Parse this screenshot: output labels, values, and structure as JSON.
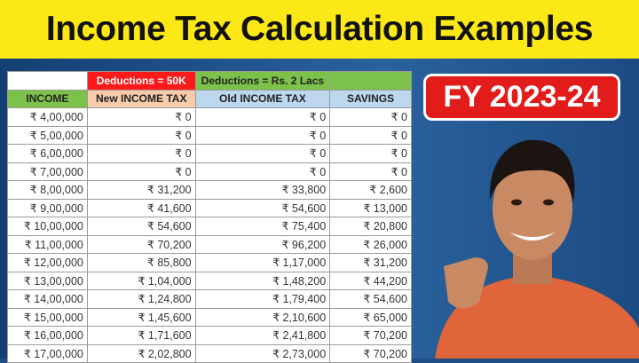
{
  "title": "Income Tax Calculation Examples",
  "badge": "FY 2023-24",
  "table": {
    "group_headers": [
      "",
      "Deductions = 50K",
      "Deductions = Rs. 2 Lacs",
      ""
    ],
    "group_colors": [
      "#ffffff",
      "#ff1a1a",
      "#7cc24a",
      "#7cc24a"
    ],
    "headers": [
      "INCOME",
      "New INCOME TAX",
      "Old INCOME TAX",
      "SAVINGS"
    ],
    "header_colors": [
      "#7cc24a",
      "#f8cbad",
      "#bdd7ee",
      "#bdd7ee"
    ],
    "rows": [
      [
        "₹ 4,00,000",
        "₹ 0",
        "₹ 0",
        "₹ 0"
      ],
      [
        "₹ 5,00,000",
        "₹ 0",
        "₹ 0",
        "₹ 0"
      ],
      [
        "₹ 6,00,000",
        "₹ 0",
        "₹ 0",
        "₹ 0"
      ],
      [
        "₹ 7,00,000",
        "₹ 0",
        "₹ 0",
        "₹ 0"
      ],
      [
        "₹ 8,00,000",
        "₹ 31,200",
        "₹ 33,800",
        "₹ 2,600"
      ],
      [
        "₹ 9,00,000",
        "₹ 41,600",
        "₹ 54,600",
        "₹ 13,000"
      ],
      [
        "₹ 10,00,000",
        "₹ 54,600",
        "₹ 75,400",
        "₹ 20,800"
      ],
      [
        "₹ 11,00,000",
        "₹ 70,200",
        "₹ 96,200",
        "₹ 26,000"
      ],
      [
        "₹ 12,00,000",
        "₹ 85,800",
        "₹ 1,17,000",
        "₹ 31,200"
      ],
      [
        "₹ 13,00,000",
        "₹ 1,04,000",
        "₹ 1,48,200",
        "₹ 44,200"
      ],
      [
        "₹ 14,00,000",
        "₹ 1,24,800",
        "₹ 1,79,400",
        "₹ 54,600"
      ],
      [
        "₹ 15,00,000",
        "₹ 1,45,600",
        "₹ 2,10,600",
        "₹ 65,000"
      ],
      [
        "₹ 16,00,000",
        "₹ 1,71,600",
        "₹ 2,41,800",
        "₹ 70,200"
      ],
      [
        "₹ 17,00,000",
        "₹ 2,02,800",
        "₹ 2,73,000",
        "₹ 70,200"
      ]
    ]
  }
}
